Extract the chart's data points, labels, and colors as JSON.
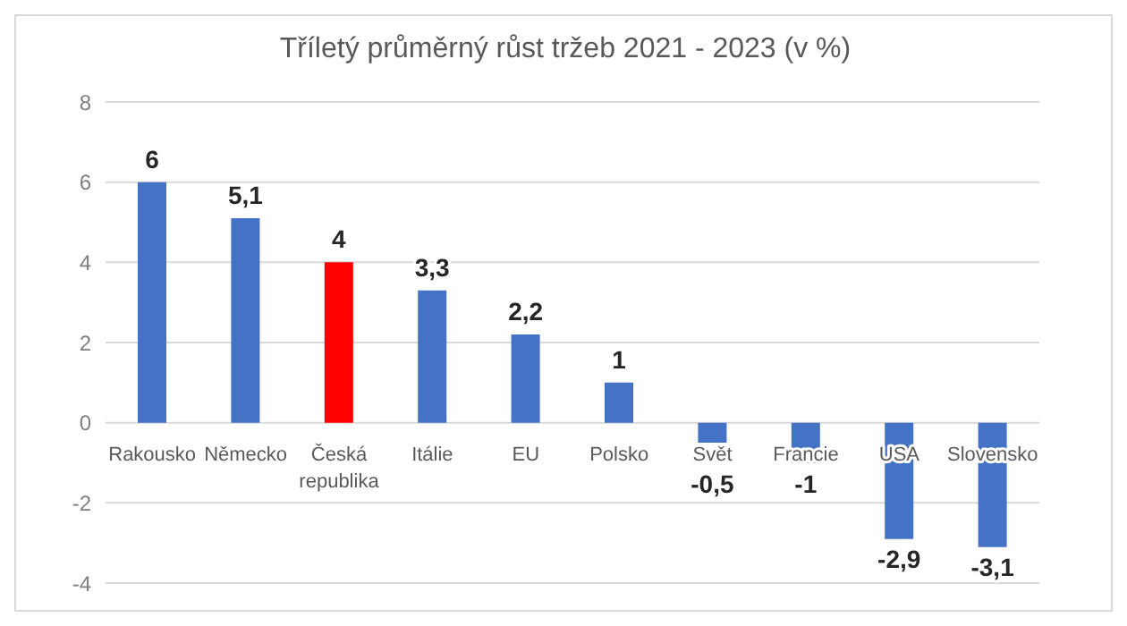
{
  "chart_data": {
    "type": "bar",
    "title": "Tříletý průměrný růst tržeb 2021 - 2023 (v %)",
    "categories": [
      "Rakousko",
      "Německo",
      "Česká republika",
      "Itálie",
      "EU",
      "Polsko",
      "Svět",
      "Francie",
      "USA",
      "Slovensko"
    ],
    "values": [
      6,
      5.1,
      4,
      3.3,
      2.2,
      1,
      -0.5,
      -1,
      -2.9,
      -3.1
    ],
    "value_labels": [
      "6",
      "5,1",
      "4",
      "3,3",
      "2,2",
      "1",
      "-0,5",
      "-1",
      "-2,9",
      "-3,1"
    ],
    "colors": [
      "#4472c4",
      "#4472c4",
      "#ff0000",
      "#4472c4",
      "#4472c4",
      "#4472c4",
      "#4472c4",
      "#4472c4",
      "#4472c4",
      "#4472c4"
    ],
    "ylim": [
      -4,
      8
    ],
    "yticks": [
      -4,
      -2,
      0,
      2,
      4,
      6,
      8
    ],
    "grid": "y",
    "legend": false
  }
}
